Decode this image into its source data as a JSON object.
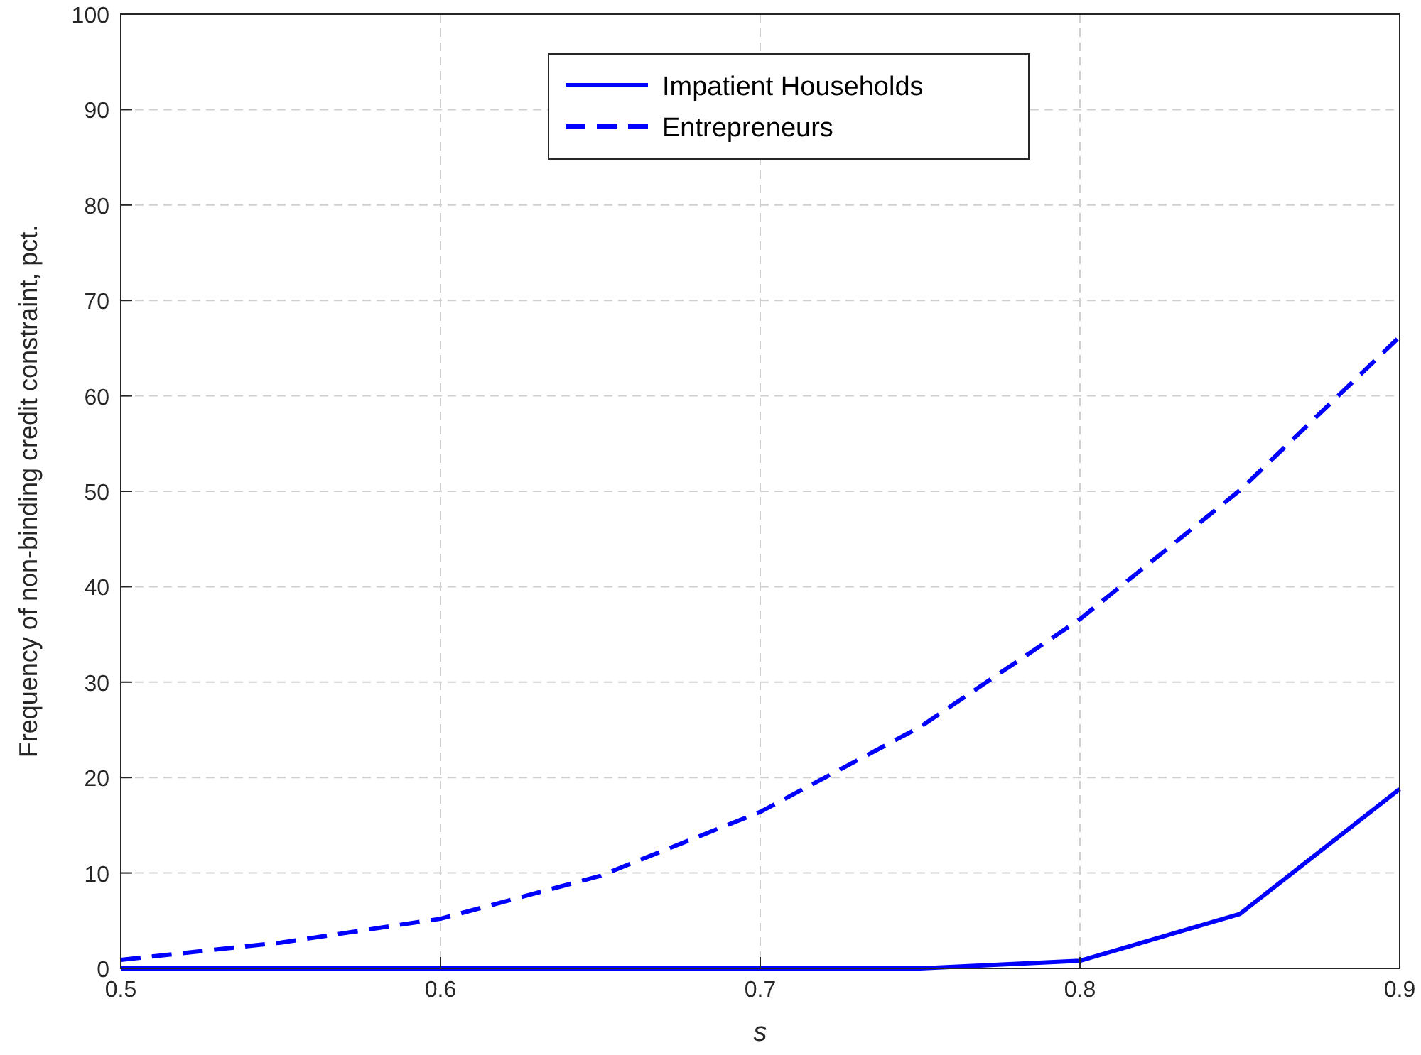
{
  "chart_data": {
    "type": "line",
    "xlabel": "s",
    "ylabel": "Frequency of non-binding credit constraint, pct.",
    "x": [
      0.5,
      0.55,
      0.6,
      0.65,
      0.7,
      0.75,
      0.8,
      0.85,
      0.9
    ],
    "series": [
      {
        "name": "Impatient Households",
        "color": "#0000ff",
        "line_style": "solid",
        "values": [
          0,
          0,
          0,
          0,
          0,
          0,
          0.8,
          5.7,
          18.8
        ]
      },
      {
        "name": "Entrepreneurs",
        "color": "#0000ff",
        "line_style": "dashed",
        "values": [
          0.9,
          2.7,
          5.2,
          9.7,
          16.4,
          25.3,
          36.6,
          50.1,
          66.2
        ]
      }
    ],
    "xlim": [
      0.5,
      0.9
    ],
    "xticks": [
      0.5,
      0.6,
      0.7,
      0.8,
      0.9
    ],
    "ylim": [
      0,
      100
    ],
    "yticks": [
      0,
      10,
      20,
      30,
      40,
      50,
      60,
      70,
      80,
      90,
      100
    ],
    "grid": true,
    "legend": "top",
    "marker": "none"
  }
}
